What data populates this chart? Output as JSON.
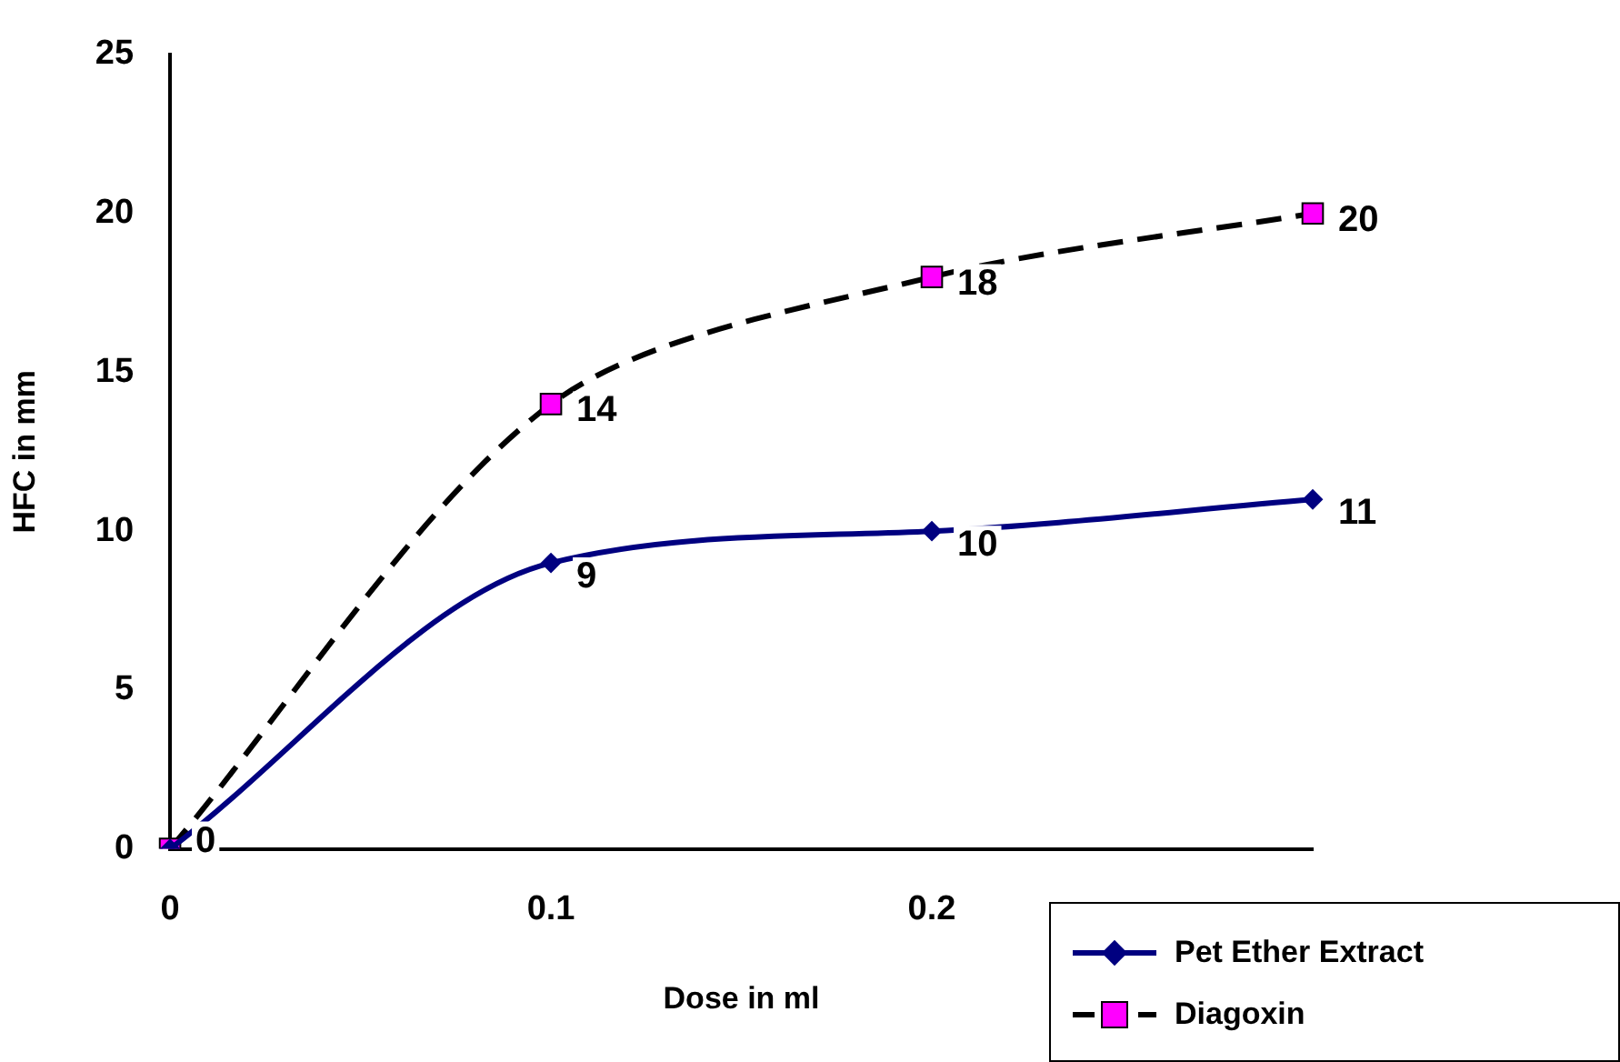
{
  "chart_data": {
    "type": "line",
    "xlabel": "Dose in ml",
    "ylabel": "HFC in mm",
    "categories": [
      "0",
      "0.1",
      "0.2",
      null
    ],
    "series": [
      {
        "name": "Pet Ether Extract",
        "color": "#000080",
        "values": [
          0,
          9,
          10,
          11
        ],
        "value_labels": [
          null,
          "9",
          "10",
          "11"
        ],
        "marker": "diamond",
        "line_style": "solid"
      },
      {
        "name": "Diagoxin",
        "color": "#000000",
        "colors": [
          "#ff00ff",
          "#ff00ff",
          "#ff00ff",
          "#ff00ff"
        ],
        "values": [
          0,
          14,
          18,
          20
        ],
        "value_labels": [
          "0",
          "14",
          "18",
          "20"
        ],
        "marker": "square",
        "line_style": "dashed"
      }
    ],
    "ylim": [
      0,
      25
    ],
    "yticks": [
      0,
      5,
      10,
      15,
      20,
      25
    ],
    "grid": false,
    "legend": "bottom right"
  }
}
